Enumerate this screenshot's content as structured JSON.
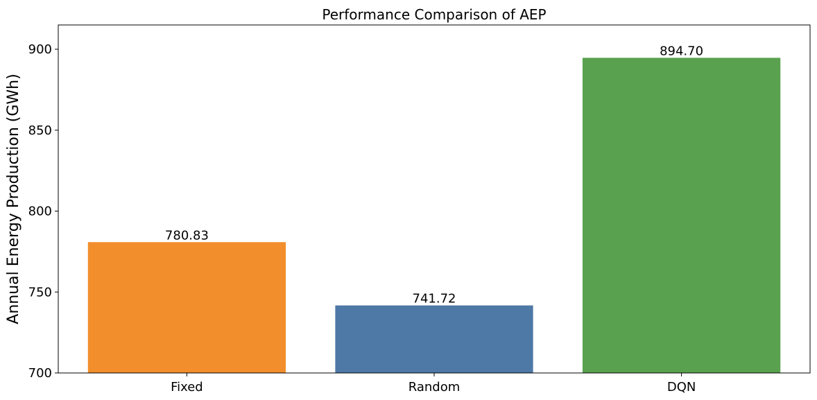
{
  "chart_data": {
    "type": "bar",
    "title": "Performance Comparison of AEP",
    "xlabel": "",
    "ylabel": "Annual Energy Production (GWh)",
    "categories": [
      "Fixed",
      "Random",
      "DQN"
    ],
    "values": [
      780.83,
      741.72,
      894.7
    ],
    "value_labels": [
      "780.83",
      "741.72",
      "894.70"
    ],
    "colors": [
      "#f28e2b",
      "#4e79a7",
      "#59a14f"
    ],
    "ylim": [
      700,
      915
    ],
    "yticks": [
      700,
      750,
      800,
      850,
      900
    ],
    "grid": false,
    "legend": "none"
  }
}
